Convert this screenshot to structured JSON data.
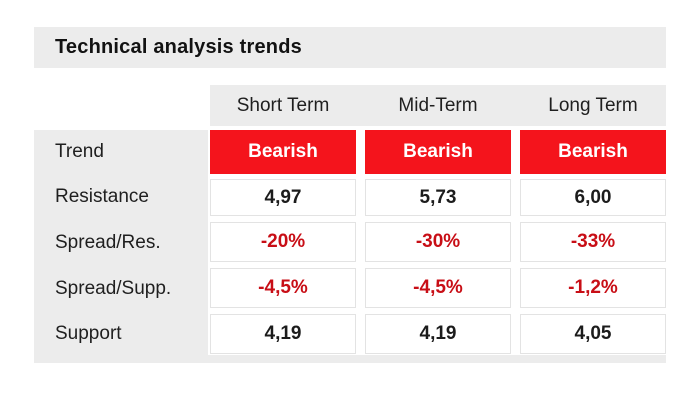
{
  "title": "Technical analysis trends",
  "chart_data": {
    "type": "table",
    "title": "Technical analysis trends",
    "columns": [
      "Short Term",
      "Mid-Term",
      "Long Term"
    ],
    "rows": [
      {
        "label": "Trend",
        "values": [
          "Bearish",
          "Bearish",
          "Bearish"
        ],
        "value_style": "white-on-red-cell"
      },
      {
        "label": "Resistance",
        "values": [
          "4,97",
          "5,73",
          "6,00"
        ],
        "value_style": "bold-black"
      },
      {
        "label": "Spread/Res.",
        "values": [
          "-20%",
          "-30%",
          "-33%"
        ],
        "value_style": "bold-dark-red"
      },
      {
        "label": "Spread/Supp.",
        "values": [
          "-4,5%",
          "-4,5%",
          "-1,2%"
        ],
        "value_style": "bold-dark-red"
      },
      {
        "label": "Support",
        "values": [
          "4,19",
          "4,19",
          "4,05"
        ],
        "value_style": "bold-black"
      }
    ],
    "number_format": "comma-decimal",
    "legend_position": "none",
    "grid": "light-gray-cell-borders"
  },
  "colors": {
    "trend_cell_red": "#f4141c",
    "negative_text_red": "#c80e16",
    "band_gray": "#ececec",
    "cell_border_gray": "#e3e3e3",
    "text_black": "#1c1c1c",
    "page_background": "#ffffff"
  }
}
